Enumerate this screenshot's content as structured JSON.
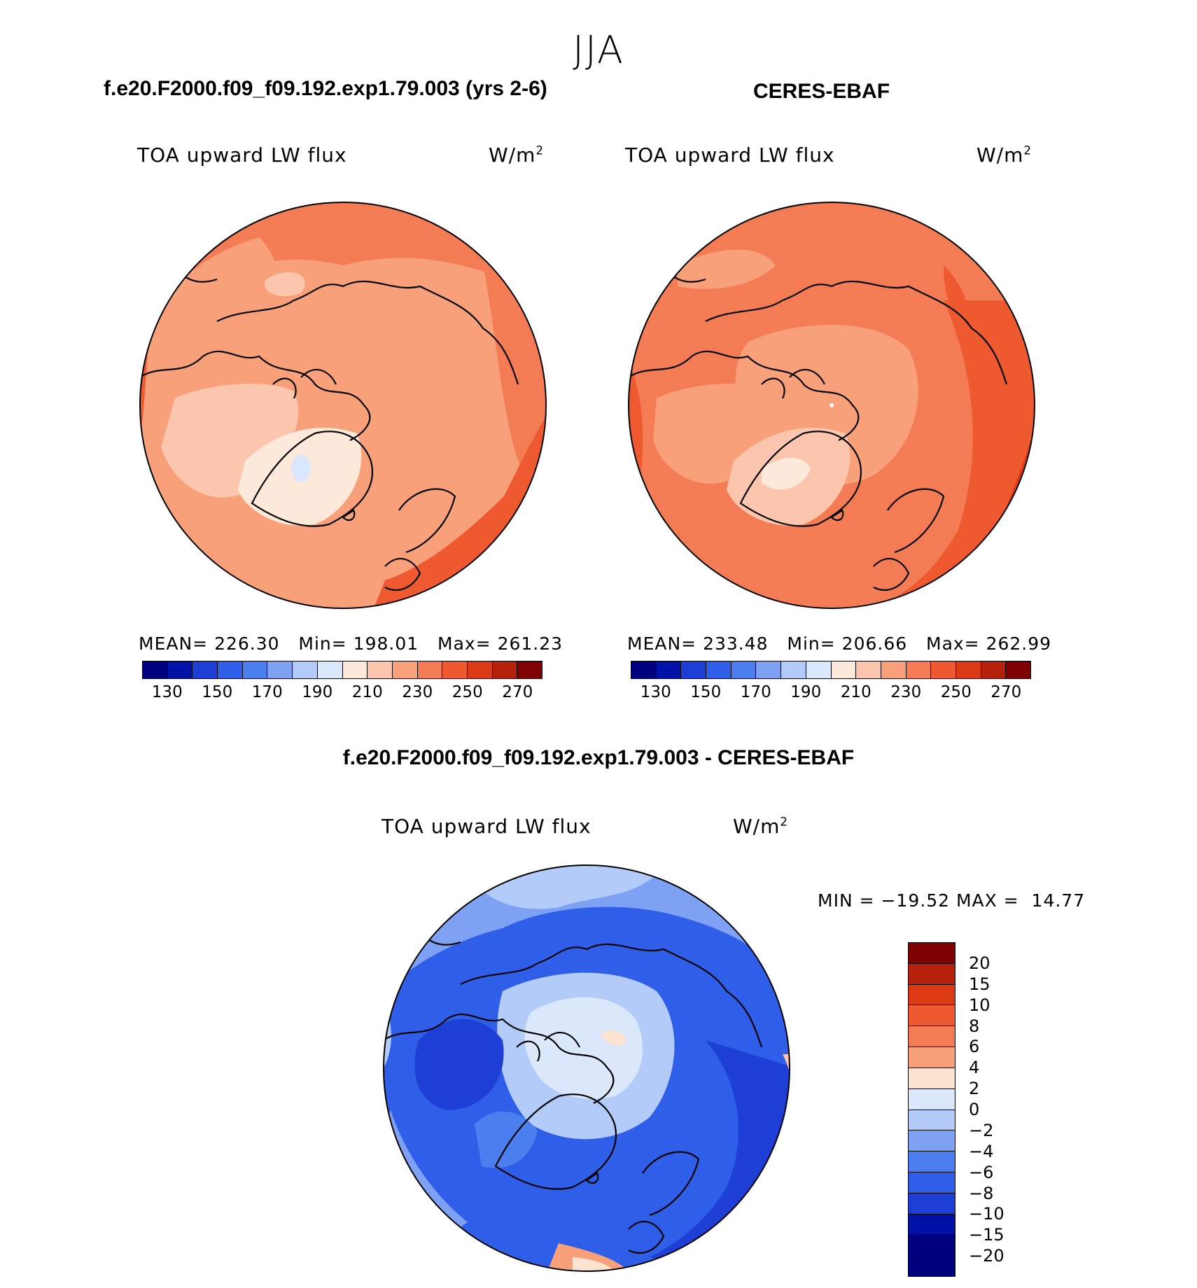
{
  "season": "JJA",
  "panel_left": {
    "title": "f.e20.F2000.f09_f09.192.exp1.79.003 (yrs 2-6)",
    "var_label": "TOA upward LW flux",
    "unit_base": "W/m",
    "unit_sup": "2",
    "mean_label": "MEAN=",
    "mean": "226.30",
    "min_label": "Min=",
    "min": "198.01",
    "max_label": "Max=",
    "max": "261.23"
  },
  "panel_right": {
    "title": "CERES-EBAF",
    "var_label": "TOA upward LW flux",
    "unit_base": "W/m",
    "unit_sup": "2",
    "mean_label": "MEAN=",
    "mean": "233.48",
    "min_label": "Min=",
    "min": "206.66",
    "max_label": "Max=",
    "max": "262.99"
  },
  "panel_diff": {
    "title": "f.e20.F2000.f09_f09.192.exp1.79.003 - CERES-EBAF",
    "var_label": "TOA upward LW flux",
    "unit_base": "W/m",
    "unit_sup": "2",
    "minmax_text": "MIN = −19.52 MAX =  14.77"
  },
  "colorbar_main": {
    "colors": [
      "#00007f",
      "#0011a8",
      "#1e3fd6",
      "#2f5ee8",
      "#4b7fef",
      "#7ea1f4",
      "#b3cbf8",
      "#dbe8fc",
      "#fde9d9",
      "#fbc6ad",
      "#f8a07a",
      "#f47c55",
      "#ee5930",
      "#dc3a14",
      "#b5210a",
      "#7e0000"
    ],
    "ticks": [
      "130",
      "150",
      "170",
      "190",
      "210",
      "230",
      "250",
      "270"
    ]
  },
  "colorbar_diff": {
    "colors": [
      "#7e0000",
      "#b5210a",
      "#dc3a14",
      "#ee5930",
      "#f47c55",
      "#f8a07a",
      "#fde4d0",
      "#dbe8fc",
      "#b3cbf8",
      "#7ea1f4",
      "#4b7fef",
      "#2f5ee8",
      "#1e3fd6",
      "#0011a8",
      "#00007f"
    ],
    "ticks": [
      "20",
      "15",
      "10",
      "8",
      "6",
      "4",
      "2",
      "0",
      "−2",
      "−4",
      "−6",
      "−8",
      "−10",
      "−15",
      "−20"
    ]
  }
}
